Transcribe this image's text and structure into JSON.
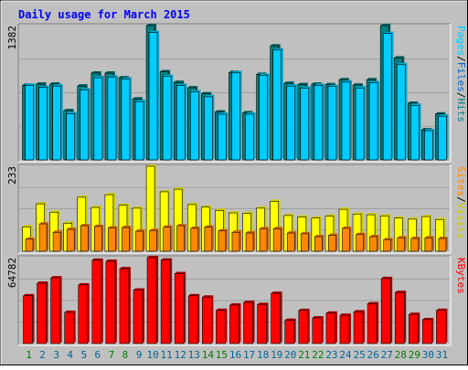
{
  "chart_data": {
    "type": "bar",
    "title": "Daily usage for March 2015",
    "colors": {
      "background": "#c0c0c0",
      "title": "#0000ff",
      "hits": "#00ccff",
      "hits_side": "#00aacc",
      "files": "#0066cc",
      "pages": "#00ccff",
      "visits": "#ffff00",
      "visits_side": "#cccc00",
      "sites": "#ff8800",
      "sites_side": "#cc6600",
      "kbytes": "#ff0000",
      "kbytes_side": "#aa0000",
      "weekday_label": "#006699",
      "weekend_label": "#008000",
      "axis_label": "#000000"
    },
    "days": [
      "1",
      "2",
      "3",
      "4",
      "5",
      "6",
      "7",
      "8",
      "9",
      "10",
      "11",
      "12",
      "13",
      "14",
      "15",
      "16",
      "17",
      "18",
      "19",
      "20",
      "21",
      "22",
      "23",
      "24",
      "25",
      "26",
      "27",
      "28",
      "29",
      "30",
      "31"
    ],
    "weekend_days": [
      1,
      7,
      8,
      14,
      15,
      21,
      22,
      28,
      29
    ],
    "panels": [
      {
        "id": "hits",
        "max_label": "1382",
        "legend": [
          {
            "text": "Pages",
            "color": "#00ccff"
          },
          {
            "text": "/",
            "color": "#000000"
          },
          {
            "text": "Files",
            "color": "#0066cc"
          },
          {
            "text": "/",
            "color": "#000000"
          },
          {
            "text": "Hits",
            "color": "#008080"
          }
        ],
        "ylim": [
          0,
          1382
        ],
        "series": [
          {
            "name": "Hits",
            "values": [
              767,
              780,
              780,
              507,
              760,
              893,
              893,
              845,
              627,
              1382,
              907,
              798,
              742,
              680,
              493,
              900,
              485,
              880,
              1173,
              788,
              775,
              779,
              774,
              825,
              770,
              825,
              1382,
              1050,
              583,
              310,
              473
            ]
          },
          {
            "name": "Files",
            "values": [
              767,
              745,
              760,
              475,
              720,
              845,
              850,
              830,
              600,
              1310,
              860,
              765,
              700,
              650,
              470,
              895,
              470,
              870,
              1130,
              760,
              738,
              765,
              755,
              800,
              740,
              792,
              1300,
              980,
              560,
              300,
              450
            ]
          },
          {
            "name": "Pages",
            "values": [
              767,
              745,
              760,
              475,
              720,
              845,
              850,
              830,
              600,
              1310,
              860,
              765,
              700,
              650,
              470,
              895,
              470,
              870,
              1130,
              760,
              738,
              765,
              755,
              800,
              740,
              792,
              1300,
              980,
              560,
              300,
              450
            ]
          }
        ]
      },
      {
        "id": "visits",
        "max_label": "233",
        "legend": [
          {
            "text": "Sites",
            "color": "#ff8800"
          },
          {
            "text": "/",
            "color": "#000000"
          },
          {
            "text": "Visits",
            "color": "#cccc00"
          }
        ],
        "ylim": [
          0,
          233
        ],
        "series": [
          {
            "name": "Visits",
            "values": [
              67,
              130,
              107,
              77,
              148,
              120,
              155,
              126,
              118,
              233,
              163,
              170,
              128,
              121,
              112,
              105,
              104,
              118,
              137,
              98,
              94,
              91,
              96,
              115,
              102,
              100,
              97,
              91,
              88,
              95,
              87
            ]
          },
          {
            "name": "Sites",
            "values": [
              33,
              75,
              52,
              60,
              70,
              68,
              64,
              65,
              55,
              57,
              66,
              70,
              63,
              66,
              56,
              52,
              50,
              62,
              62,
              50,
              48,
              40,
              44,
              63,
              46,
              40,
              32,
              37,
              35,
              37,
              35
            ]
          }
        ]
      },
      {
        "id": "kbytes",
        "max_label": "64782",
        "legend": [
          {
            "text": "KBytes",
            "color": "#ff0000"
          }
        ],
        "ylim": [
          0,
          64782
        ],
        "series": [
          {
            "name": "KBytes",
            "values": [
              36000,
              45500,
              49500,
              23500,
              44200,
              62800,
              62000,
              56400,
              40300,
              64782,
              63000,
              52700,
              36000,
              35000,
              25000,
              29000,
              31000,
              29500,
              37800,
              17500,
              24900,
              19300,
              22900,
              21300,
              23900,
              30000,
              49000,
              38500,
              22000,
              18000,
              25000
            ]
          }
        ]
      }
    ]
  }
}
